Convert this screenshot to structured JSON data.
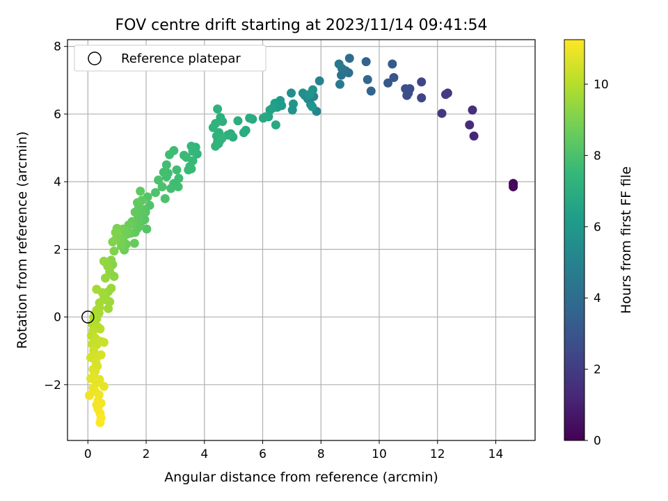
{
  "chart_data": {
    "type": "scatter",
    "title": "FOV centre drift starting at 2023/11/14 09:41:54",
    "xlabel": "Angular distance from reference (arcmin)",
    "ylabel": "Rotation from reference (arcmin)",
    "xlim": [
      -0.7,
      15.35
    ],
    "ylim": [
      -3.65,
      8.2
    ],
    "xticks": [
      0,
      2,
      4,
      6,
      8,
      10,
      12,
      14
    ],
    "yticks": [
      -2,
      0,
      2,
      4,
      6,
      8
    ],
    "xtick_labels": [
      "0",
      "2",
      "4",
      "6",
      "8",
      "10",
      "12",
      "14"
    ],
    "ytick_labels": [
      "−2",
      "0",
      "2",
      "4",
      "6",
      "8"
    ],
    "grid": true,
    "colormap": "viridis",
    "colorbar": {
      "label": "Hours from first FF file",
      "range": [
        0,
        11.25
      ],
      "ticks": [
        0,
        2,
        4,
        6,
        8,
        10
      ],
      "tick_labels": [
        "0",
        "2",
        "4",
        "6",
        "8",
        "10"
      ]
    },
    "legend": {
      "placement": "top-left",
      "entries": [
        {
          "label": "Reference platepar",
          "marker": "open-circle"
        }
      ]
    },
    "reference_point": {
      "x": 0,
      "y": 0
    },
    "series": [
      {
        "points": [
          [
            14.6,
            3.95,
            0.1
          ],
          [
            14.6,
            3.85,
            0.15
          ],
          [
            14.6,
            3.92,
            0.2
          ],
          [
            13.25,
            5.35,
            1.2
          ],
          [
            13.1,
            5.68,
            1.4
          ],
          [
            13.2,
            6.12,
            1.5
          ],
          [
            12.15,
            6.02,
            1.8
          ],
          [
            12.35,
            6.62,
            1.9
          ],
          [
            12.28,
            6.58,
            2.0
          ],
          [
            11.45,
            6.48,
            2.3
          ],
          [
            11.45,
            6.95,
            2.4
          ],
          [
            11.05,
            6.75,
            2.6
          ],
          [
            10.95,
            6.55,
            2.65
          ],
          [
            11.0,
            6.62,
            2.7
          ],
          [
            10.9,
            6.75,
            2.8
          ],
          [
            10.5,
            7.08,
            3.0
          ],
          [
            10.3,
            6.92,
            3.1
          ],
          [
            10.45,
            7.48,
            3.2
          ],
          [
            9.55,
            7.55,
            3.5
          ],
          [
            9.72,
            6.68,
            3.6
          ],
          [
            9.6,
            7.02,
            3.7
          ],
          [
            8.98,
            7.65,
            4.0
          ],
          [
            8.95,
            7.22,
            4.1
          ],
          [
            8.7,
            7.15,
            4.2
          ],
          [
            8.85,
            7.28,
            4.3
          ],
          [
            8.72,
            7.35,
            4.4
          ],
          [
            8.62,
            7.48,
            4.5
          ],
          [
            8.65,
            6.88,
            4.6
          ],
          [
            7.95,
            6.98,
            5.0
          ],
          [
            7.85,
            6.08,
            5.1
          ],
          [
            7.75,
            6.52,
            5.2
          ],
          [
            7.65,
            6.28,
            5.3
          ],
          [
            7.55,
            6.45,
            5.4
          ],
          [
            7.45,
            6.55,
            5.5
          ],
          [
            7.38,
            6.62,
            5.6
          ],
          [
            7.72,
            6.72,
            5.7
          ],
          [
            7.6,
            6.58,
            5.8
          ],
          [
            7.7,
            6.22,
            5.9
          ],
          [
            6.98,
            6.62,
            5.6
          ],
          [
            7.02,
            6.12,
            5.8
          ],
          [
            7.05,
            6.3,
            5.9
          ],
          [
            6.6,
            6.4,
            6.0
          ],
          [
            6.65,
            6.25,
            6.1
          ],
          [
            6.5,
            6.2,
            6.2
          ],
          [
            6.42,
            6.32,
            6.3
          ],
          [
            6.35,
            6.18,
            6.4
          ],
          [
            6.25,
            6.12,
            6.5
          ],
          [
            6.2,
            5.92,
            6.6
          ],
          [
            6.1,
            5.92,
            6.7
          ],
          [
            6.02,
            5.88,
            6.8
          ],
          [
            6.45,
            5.68,
            6.8
          ],
          [
            5.65,
            5.85,
            6.8
          ],
          [
            5.55,
            5.88,
            6.9
          ],
          [
            5.42,
            5.52,
            6.95
          ],
          [
            5.35,
            5.45,
            7.0
          ],
          [
            5.15,
            5.8,
            7.0
          ],
          [
            4.98,
            5.32,
            7.0
          ],
          [
            4.9,
            5.42,
            7.05
          ],
          [
            4.8,
            5.38,
            7.1
          ],
          [
            4.62,
            5.78,
            7.1
          ],
          [
            4.55,
            5.9,
            7.1
          ],
          [
            4.5,
            5.45,
            7.15
          ],
          [
            4.45,
            5.18,
            7.15
          ],
          [
            4.42,
            5.35,
            7.2
          ],
          [
            4.38,
            5.72,
            7.2
          ],
          [
            4.45,
            6.15,
            7.2
          ],
          [
            4.52,
            5.2,
            7.25
          ],
          [
            4.38,
            5.05,
            7.3
          ],
          [
            4.48,
            5.12,
            7.3
          ],
          [
            4.6,
            5.28,
            7.35
          ],
          [
            4.3,
            5.6,
            7.3
          ],
          [
            3.75,
            4.82,
            7.4
          ],
          [
            3.7,
            5.02,
            7.45
          ],
          [
            3.6,
            4.9,
            7.5
          ],
          [
            3.55,
            5.05,
            7.5
          ],
          [
            3.6,
            4.62,
            7.55
          ],
          [
            3.45,
            4.35,
            7.6
          ],
          [
            3.5,
            4.45,
            7.6
          ],
          [
            3.38,
            4.72,
            7.65
          ],
          [
            3.3,
            4.78,
            7.6
          ],
          [
            3.55,
            4.38,
            7.6
          ],
          [
            3.12,
            4.1,
            7.7
          ],
          [
            3.05,
            4.35,
            7.75
          ],
          [
            3.1,
            3.85,
            7.8
          ],
          [
            2.95,
            3.95,
            7.75
          ],
          [
            2.95,
            4.92,
            7.7
          ],
          [
            2.85,
            3.8,
            7.8
          ],
          [
            2.8,
            4.8,
            7.75
          ],
          [
            2.75,
            4.25,
            7.8
          ],
          [
            2.7,
            4.15,
            7.8
          ],
          [
            2.6,
            4.28,
            7.85
          ],
          [
            2.7,
            4.5,
            7.8
          ],
          [
            2.65,
            3.5,
            8.0
          ],
          [
            2.55,
            3.85,
            8.0
          ],
          [
            2.42,
            4.05,
            8.0
          ],
          [
            2.32,
            3.68,
            8.1
          ],
          [
            2.12,
            3.3,
            8.15
          ],
          [
            2.05,
            3.55,
            8.2
          ],
          [
            2.02,
            2.6,
            8.2
          ],
          [
            1.98,
            3.1,
            8.25
          ],
          [
            1.95,
            2.88,
            8.3
          ],
          [
            1.92,
            3.18,
            8.3
          ],
          [
            1.85,
            3.45,
            8.35
          ],
          [
            1.85,
            3.05,
            8.35
          ],
          [
            1.8,
            3.72,
            8.4
          ],
          [
            1.8,
            2.7,
            8.4
          ],
          [
            1.75,
            3.25,
            8.4
          ],
          [
            1.72,
            2.92,
            8.45
          ],
          [
            1.7,
            2.62,
            8.45
          ],
          [
            1.7,
            3.38,
            8.5
          ],
          [
            1.62,
            2.5,
            8.5
          ],
          [
            1.62,
            3.1,
            8.5
          ],
          [
            1.55,
            2.75,
            8.55
          ],
          [
            1.52,
            2.82,
            8.6
          ],
          [
            1.6,
            2.18,
            8.6
          ],
          [
            1.48,
            2.48,
            8.6
          ],
          [
            1.4,
            2.72,
            8.65
          ],
          [
            1.35,
            2.45,
            8.7
          ],
          [
            1.32,
            2.15,
            8.7
          ],
          [
            1.32,
            2.52,
            8.75
          ],
          [
            1.25,
            1.98,
            8.75
          ],
          [
            1.22,
            2.35,
            8.8
          ],
          [
            1.2,
            2.6,
            8.8
          ],
          [
            1.15,
            2.1,
            8.85
          ],
          [
            1.1,
            2.28,
            8.9
          ],
          [
            1.05,
            2.58,
            8.9
          ],
          [
            1.0,
            2.62,
            8.95
          ],
          [
            1.0,
            2.42,
            9.0
          ],
          [
            0.95,
            2.28,
            9.05
          ],
          [
            0.95,
            2.5,
            9.05
          ],
          [
            0.9,
            1.95,
            9.05
          ],
          [
            0.85,
            2.22,
            9.1
          ],
          [
            0.8,
            1.68,
            9.2
          ],
          [
            0.75,
            1.6,
            9.25
          ],
          [
            0.85,
            1.55,
            9.2
          ],
          [
            0.9,
            1.2,
            9.3
          ],
          [
            0.75,
            1.35,
            9.3
          ],
          [
            0.68,
            1.5,
            9.35
          ],
          [
            0.6,
            1.62,
            9.4
          ],
          [
            0.55,
            1.65,
            9.4
          ],
          [
            0.6,
            1.15,
            9.45
          ],
          [
            0.65,
            0.5,
            9.5
          ],
          [
            0.8,
            0.85,
            9.5
          ],
          [
            0.7,
            0.75,
            9.55
          ],
          [
            0.75,
            0.45,
            9.6
          ],
          [
            0.7,
            0.25,
            9.6
          ],
          [
            0.55,
            0.55,
            9.65
          ],
          [
            0.5,
            0.72,
            9.65
          ],
          [
            0.4,
            0.42,
            9.7
          ],
          [
            0.3,
            0.82,
            9.7
          ],
          [
            0.4,
            0.28,
            9.75
          ],
          [
            0.38,
            0.12,
            9.75
          ],
          [
            0.3,
            0.2,
            9.8
          ],
          [
            0.25,
            0.1,
            9.8
          ],
          [
            0.22,
            -0.1,
            9.85
          ],
          [
            0.3,
            -0.05,
            9.85
          ],
          [
            0.2,
            0.0,
            9.9
          ],
          [
            0.15,
            -0.2,
            9.95
          ],
          [
            0.35,
            -0.3,
            10.0
          ],
          [
            0.42,
            -0.35,
            10.05
          ],
          [
            0.18,
            -0.4,
            10.1
          ],
          [
            0.12,
            -0.55,
            10.15
          ],
          [
            0.22,
            -0.6,
            10.2
          ],
          [
            0.3,
            -0.82,
            10.25
          ],
          [
            0.28,
            -0.65,
            10.3
          ],
          [
            0.15,
            -0.8,
            10.3
          ],
          [
            0.45,
            -0.72,
            10.35
          ],
          [
            0.55,
            -0.75,
            10.35
          ],
          [
            0.2,
            -1.0,
            10.4
          ],
          [
            0.25,
            -1.12,
            10.45
          ],
          [
            0.1,
            -1.2,
            10.5
          ],
          [
            0.35,
            -1.15,
            10.5
          ],
          [
            0.45,
            -1.12,
            10.55
          ],
          [
            0.28,
            -1.35,
            10.6
          ],
          [
            0.32,
            -1.45,
            10.6
          ],
          [
            0.18,
            -1.55,
            10.65
          ],
          [
            0.25,
            -1.6,
            10.7
          ],
          [
            0.2,
            -1.75,
            10.75
          ],
          [
            0.1,
            -1.82,
            10.8
          ],
          [
            0.4,
            -1.85,
            10.8
          ],
          [
            0.3,
            -1.95,
            10.85
          ],
          [
            0.55,
            -2.05,
            10.85
          ],
          [
            0.18,
            -2.1,
            10.9
          ],
          [
            0.25,
            -2.2,
            10.95
          ],
          [
            0.05,
            -2.32,
            11.0
          ],
          [
            0.38,
            -2.3,
            11.0
          ],
          [
            0.35,
            -2.48,
            11.05
          ],
          [
            0.45,
            -2.55,
            11.05
          ],
          [
            0.3,
            -2.6,
            11.1
          ],
          [
            0.35,
            -2.72,
            11.1
          ],
          [
            0.42,
            -2.85,
            11.15
          ],
          [
            0.45,
            -2.98,
            11.2
          ],
          [
            0.42,
            -3.12,
            11.2
          ]
        ]
      }
    ]
  }
}
